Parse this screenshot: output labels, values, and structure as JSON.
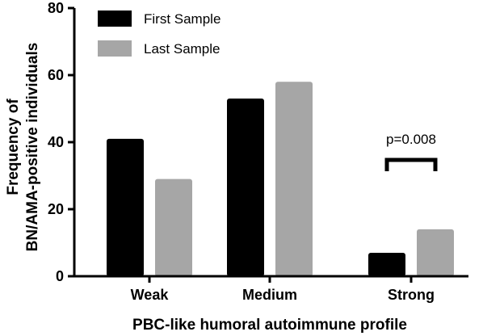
{
  "chart_data": {
    "type": "bar",
    "categories": [
      "Weak",
      "Medium",
      "Strong"
    ],
    "series": [
      {
        "name": "First Sample",
        "values": [
          41,
          53,
          7
        ],
        "color": "#000000"
      },
      {
        "name": "Last Sample",
        "values": [
          29,
          58,
          14
        ],
        "color": "#a6a6a6"
      }
    ],
    "xlabel": "PBC-like humoral autoimmune profile",
    "ylabel_lines": [
      "Frequency of",
      "BN/AMA-positive individuals"
    ],
    "ylim": [
      0,
      80
    ],
    "yticks": [
      "0",
      "20",
      "40",
      "60",
      "80"
    ],
    "grid": false,
    "legend_position": "top-left",
    "annotation": {
      "text": "p=0.008",
      "category": "Strong",
      "type": "bracket"
    }
  }
}
